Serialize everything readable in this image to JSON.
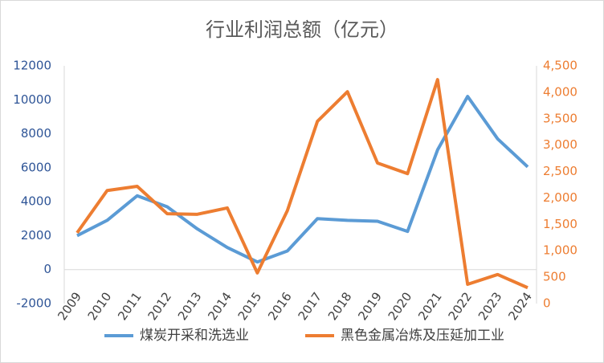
{
  "chart_data": {
    "type": "line",
    "title": "行业利润总额（亿元）",
    "categories": [
      "2009",
      "2010",
      "2011",
      "2012",
      "2013",
      "2014",
      "2015",
      "2016",
      "2017",
      "2018",
      "2019",
      "2020",
      "2021",
      "2022",
      "2023",
      "2024"
    ],
    "series": [
      {
        "name": "煤炭开采和洗选业",
        "color": "#5b9bd5",
        "axis": "y",
        "values": [
          2000,
          2900,
          4350,
          3700,
          2400,
          1300,
          450,
          1100,
          3000,
          2900,
          2850,
          2250,
          7050,
          10200,
          7700,
          6050
        ]
      },
      {
        "name": "黑色金属冶炼及压延加工业",
        "color": "#ed7d31",
        "axis": "y2",
        "values": [
          1340,
          2140,
          2220,
          1700,
          1690,
          1810,
          580,
          1760,
          3450,
          4010,
          2660,
          2460,
          4240,
          365,
          550,
          300
        ]
      }
    ],
    "ylim": [
      -2000,
      12000
    ],
    "yticks": [
      -2000,
      0,
      2000,
      4000,
      6000,
      8000,
      10000,
      12000
    ],
    "y2lim": [
      0,
      4500
    ],
    "y2ticks": [
      0,
      500,
      {
        "value": 1000,
        "label": "1,000"
      },
      {
        "value": 1500,
        "label": "1,500"
      },
      {
        "value": 2000,
        "label": "2,000"
      },
      {
        "value": 2500,
        "label": "2,500"
      },
      {
        "value": 3000,
        "label": "3,000"
      },
      {
        "value": 3500,
        "label": "3,500"
      },
      {
        "value": 4000,
        "label": "4,000"
      },
      {
        "value": 4500,
        "label": "4,500"
      }
    ],
    "legend": "bottom"
  }
}
